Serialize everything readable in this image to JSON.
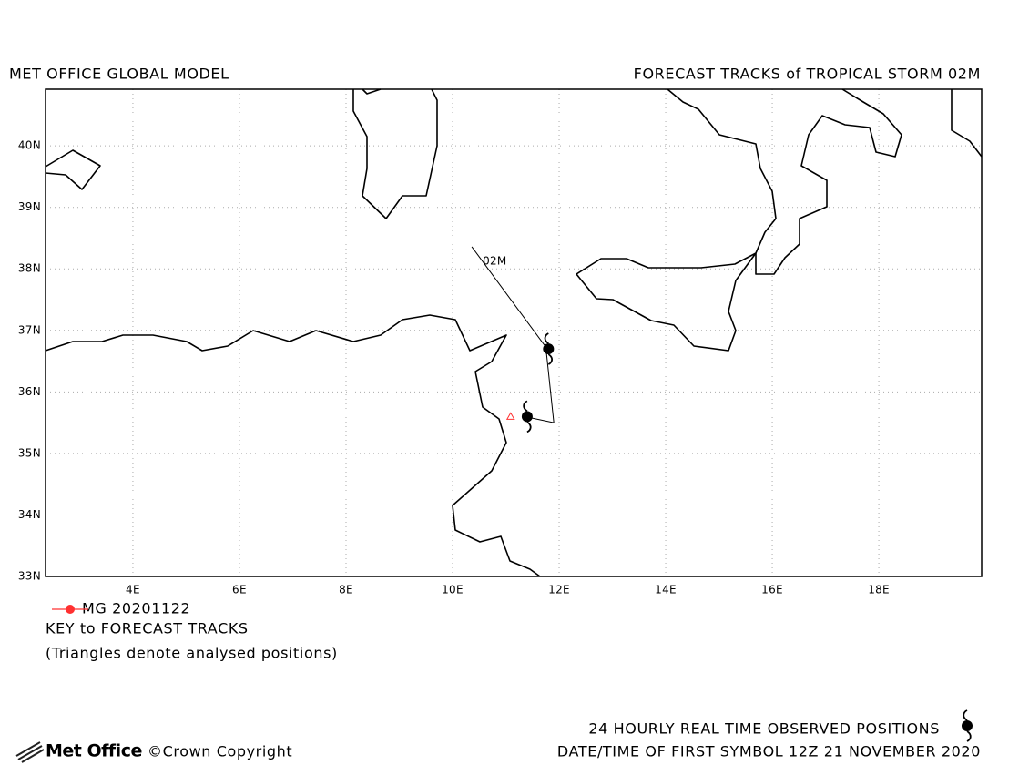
{
  "chart_data": {
    "type": "track-map",
    "title": "MET OFFICE GLOBAL MODEL",
    "subtitle": "FORECAST TRACKS of TROPICAL STORM 02M",
    "xlim": [
      2.36,
      19.93
    ],
    "ylim": [
      33,
      40.92
    ],
    "xticks": [
      {
        "value": 4,
        "label": "4E"
      },
      {
        "value": 6,
        "label": "6E"
      },
      {
        "value": 8,
        "label": "8E"
      },
      {
        "value": 10,
        "label": "10E"
      },
      {
        "value": 12,
        "label": "12E"
      },
      {
        "value": 14,
        "label": "14E"
      },
      {
        "value": 16,
        "label": "16E"
      },
      {
        "value": 18,
        "label": "18E"
      }
    ],
    "yticks": [
      {
        "value": 33,
        "label": "33N"
      },
      {
        "value": 34,
        "label": "34N"
      },
      {
        "value": 35,
        "label": "35N"
      },
      {
        "value": 36,
        "label": "36N"
      },
      {
        "value": 37,
        "label": "37N"
      },
      {
        "value": 38,
        "label": "38N"
      },
      {
        "value": 39,
        "label": "39N"
      },
      {
        "value": 40,
        "label": "40N"
      }
    ],
    "grid": true,
    "tracks": [
      {
        "name": "02M",
        "color": "#000000",
        "lon": [
          10.36,
          11.75,
          11.9,
          11.35
        ],
        "lat": [
          38.36,
          36.73,
          35.5,
          35.6
        ]
      }
    ],
    "observed": {
      "lon": [
        11.8,
        11.4
      ],
      "lat": [
        36.7,
        35.6
      ]
    },
    "analysed": {
      "lon": [
        11.09
      ],
      "lat": [
        35.6
      ]
    },
    "legend": {
      "name": "MG 20201122",
      "color": "#ff3030"
    },
    "key_title": "KEY to FORECAST TRACKS",
    "key_note": "(Triangles denote analysed positions)",
    "footer": {
      "observed_note": "24 HOURLY REAL TIME OBSERVED POSITIONS",
      "date_note": "DATE/TIME OF FIRST SYMBOL 12Z 21 NOVEMBER 2020",
      "logo": "Met Office",
      "copyright": "©Crown Copyright"
    }
  }
}
